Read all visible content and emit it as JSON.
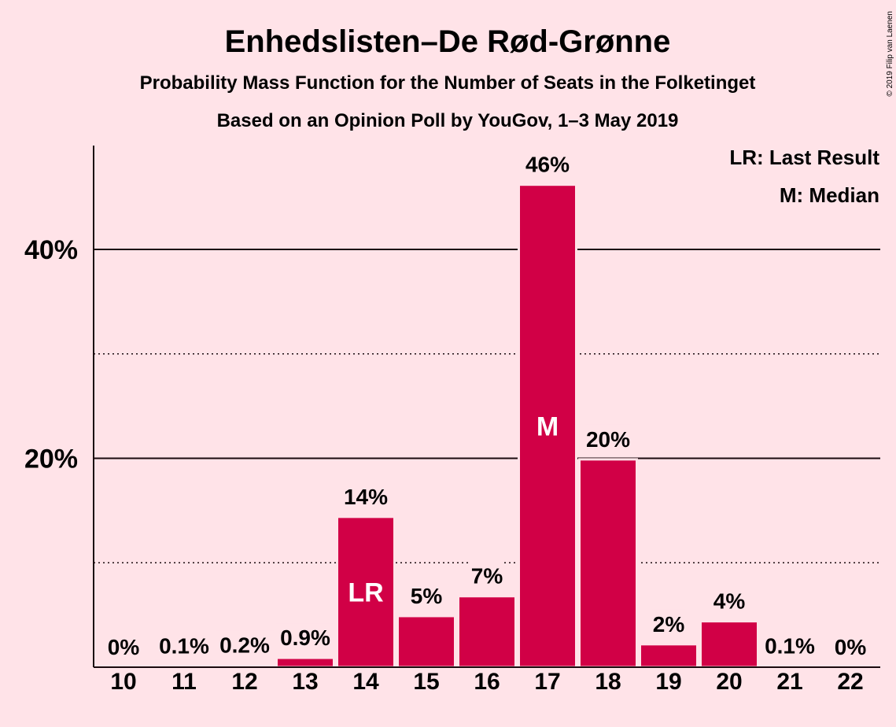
{
  "chart_data": {
    "type": "bar",
    "title": "Enhedslisten–De Rød-Grønne",
    "subtitle": "Probability Mass Function for the Number of Seats in the Folketinget",
    "subtitle2": "Based on an Opinion Poll by YouGov, 1–3 May 2019",
    "xlabel": "",
    "ylabel": "",
    "categories": [
      "10",
      "11",
      "12",
      "13",
      "14",
      "15",
      "16",
      "17",
      "18",
      "19",
      "20",
      "21",
      "22"
    ],
    "values": [
      0,
      0.1,
      0.2,
      0.9,
      14.4,
      4.9,
      6.8,
      46.2,
      19.9,
      2.2,
      4.4,
      0.1,
      0
    ],
    "value_labels": [
      "0%",
      "0.1%",
      "0.2%",
      "0.9%",
      "14%",
      "5%",
      "7%",
      "46%",
      "20%",
      "2%",
      "4%",
      "0.1%",
      "0%"
    ],
    "ylim": [
      0,
      50
    ],
    "yticks": [
      20,
      40
    ],
    "ytick_labels": [
      "20%",
      "40%"
    ],
    "minor_gridlines": [
      10,
      30
    ],
    "grid": true,
    "bar_color": "#D10046",
    "background": "#FFE3E8",
    "markers": [
      {
        "category": "14",
        "text": "LR"
      },
      {
        "category": "17",
        "text": "M"
      }
    ],
    "legend": {
      "placement": "top-right",
      "entries": [
        "LR: Last Result",
        "M: Median"
      ]
    },
    "copyright": "© 2019 Filip van Laenen"
  }
}
